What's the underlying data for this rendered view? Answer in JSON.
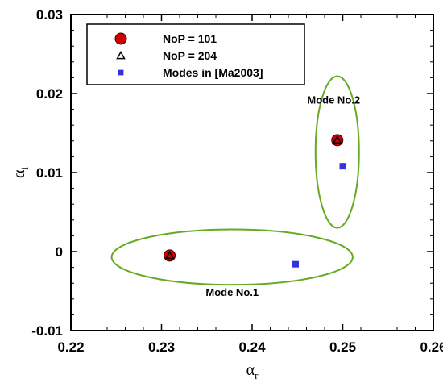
{
  "chart_data": {
    "type": "scatter",
    "title": "",
    "xlabel": "α",
    "xlabel_sub": "r",
    "ylabel": "α",
    "ylabel_sub": "i",
    "xlim": [
      0.22,
      0.26
    ],
    "ylim": [
      -0.01,
      0.03
    ],
    "xticks": [
      "0.22",
      "0.23",
      "0.24",
      "0.25",
      "0.26"
    ],
    "yticks": [
      "-0.01",
      "0",
      "0.01",
      "0.02",
      "0.03"
    ],
    "grid": false,
    "legend_position": "top-left",
    "series": [
      {
        "name": "NoP = 101",
        "marker": "circle",
        "color": "#cc0000",
        "x": [
          0.2309,
          0.2494
        ],
        "y": [
          -0.0005,
          0.0141
        ]
      },
      {
        "name": "NoP = 204",
        "marker": "triangle-open",
        "color": "#000000",
        "x": [
          0.2309,
          0.2494
        ],
        "y": [
          -0.0005,
          0.0141
        ]
      },
      {
        "name": "Modes in [Ma2003]",
        "marker": "square",
        "color": "#3333dd",
        "x": [
          0.2448,
          0.25
        ],
        "y": [
          -0.0016,
          0.0108
        ]
      }
    ],
    "annotations": [
      {
        "text": "Mode No.1",
        "x": 0.2378,
        "y": -0.0056
      },
      {
        "text": "Mode No.2",
        "x": 0.249,
        "y": 0.0187
      }
    ],
    "ellipses": {
      "color": "#66aa22",
      "items": [
        {
          "cx": 0.2378,
          "cy": -0.0007,
          "rx": 0.0133,
          "ry": 0.0035
        },
        {
          "cx": 0.2494,
          "cy": 0.0126,
          "rx": 0.0024,
          "ry": 0.0096
        }
      ]
    }
  }
}
